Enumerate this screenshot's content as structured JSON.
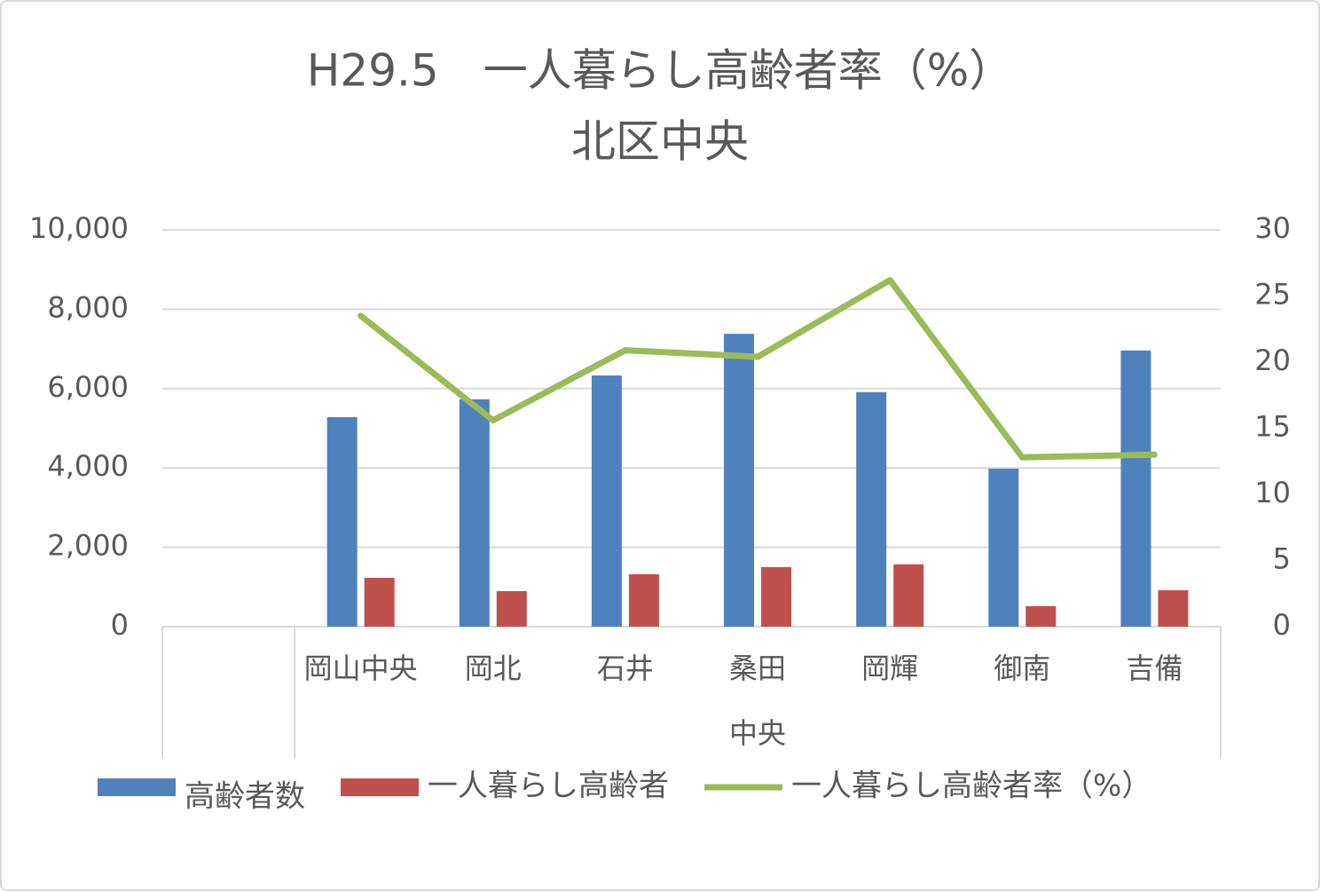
{
  "chart_data": {
    "type": "bar",
    "title": "H29.5　一人暮らし高齢者率（%）",
    "subtitle": "北区中央",
    "categories": [
      null,
      "岡山中央",
      "岡北",
      "石井",
      "桑田",
      "岡輝",
      "御南",
      "吉備"
    ],
    "group_label": "中央",
    "series": [
      {
        "name": "高齢者数",
        "color": "#4f81bd",
        "type": "bar",
        "values": [
          null,
          5280,
          5730,
          6330,
          7380,
          5910,
          3980,
          6960
        ]
      },
      {
        "name": "一人暮らし高齢者",
        "color": "#c0504d",
        "type": "bar",
        "values": [
          null,
          1230,
          895,
          1320,
          1500,
          1570,
          515,
          917
        ]
      },
      {
        "name": "一人暮らし高齢者率（%）",
        "color": "#9bbb59",
        "type": "line",
        "axis": "y2",
        "values": [
          null,
          23.5,
          15.6,
          20.9,
          20.4,
          26.2,
          12.8,
          13.0
        ]
      }
    ],
    "ylim": [
      0,
      10000
    ],
    "yticks": [
      0,
      {
        "value": 2000,
        "label": "2,000"
      },
      {
        "value": 4000,
        "label": "4,000"
      },
      {
        "value": 6000,
        "label": "6,000"
      },
      {
        "value": 8000,
        "label": "8,000"
      },
      {
        "value": 10000,
        "label": "10,000"
      }
    ],
    "y2lim": [
      0,
      30
    ],
    "y2ticks": [
      0,
      5,
      10,
      15,
      20,
      25,
      30
    ],
    "grid": true,
    "legend": "bottom"
  }
}
